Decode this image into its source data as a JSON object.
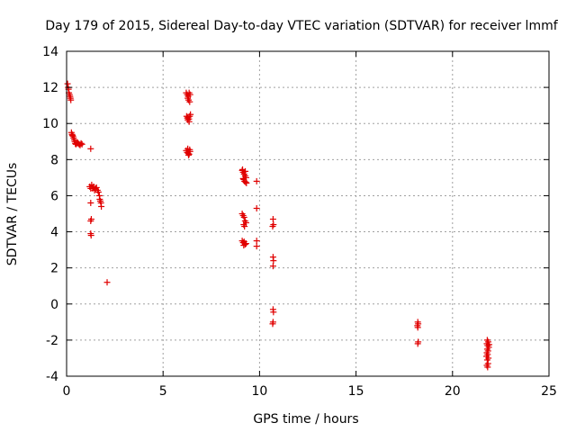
{
  "colors": {
    "background": "#ffffff",
    "axis": "#000000",
    "grid": "#a0a0a0",
    "series": "#e00000"
  },
  "chart_data": {
    "type": "scatter",
    "title": "Day 179 of 2015, Sidereal Day-to-day VTEC variation (SDTVAR) for receiver lmmf",
    "xlabel": "GPS time / hours",
    "ylabel": "SDTVAR / TECUs",
    "xlim": [
      0,
      25
    ],
    "ylim": [
      -4,
      14
    ],
    "xticks": [
      0,
      5,
      10,
      15,
      20,
      25
    ],
    "yticks": [
      -4,
      -2,
      0,
      2,
      4,
      6,
      8,
      10,
      12,
      14
    ],
    "grid": true,
    "marker": "+",
    "series": [
      {
        "name": "SDTVAR",
        "points": [
          [
            0.05,
            12.2
          ],
          [
            0.08,
            12.0
          ],
          [
            0.1,
            11.9
          ],
          [
            0.12,
            11.7
          ],
          [
            0.15,
            11.6
          ],
          [
            0.18,
            11.5
          ],
          [
            0.2,
            11.4
          ],
          [
            0.22,
            11.3
          ],
          [
            0.25,
            9.5
          ],
          [
            0.28,
            9.4
          ],
          [
            0.3,
            9.35
          ],
          [
            0.33,
            9.3
          ],
          [
            0.36,
            9.2
          ],
          [
            0.4,
            9.1
          ],
          [
            0.42,
            9.0
          ],
          [
            0.45,
            8.9
          ],
          [
            0.48,
            8.85
          ],
          [
            0.52,
            8.9
          ],
          [
            0.56,
            8.95
          ],
          [
            0.6,
            8.9
          ],
          [
            0.65,
            8.85
          ],
          [
            0.7,
            8.8
          ],
          [
            0.75,
            8.9
          ],
          [
            0.8,
            8.85
          ],
          [
            1.25,
            8.6
          ],
          [
            1.2,
            6.5
          ],
          [
            1.25,
            6.4
          ],
          [
            1.3,
            6.6
          ],
          [
            1.35,
            6.4
          ],
          [
            1.4,
            6.5
          ],
          [
            1.45,
            6.3
          ],
          [
            1.5,
            6.4
          ],
          [
            1.55,
            6.45
          ],
          [
            1.6,
            6.3
          ],
          [
            1.65,
            6.2
          ],
          [
            1.7,
            6.0
          ],
          [
            1.72,
            5.8
          ],
          [
            1.75,
            5.7
          ],
          [
            1.78,
            5.6
          ],
          [
            1.8,
            5.4
          ],
          [
            1.25,
            5.6
          ],
          [
            1.28,
            4.7
          ],
          [
            1.25,
            4.6
          ],
          [
            1.25,
            3.9
          ],
          [
            1.27,
            3.8
          ],
          [
            2.1,
            1.2
          ],
          [
            6.2,
            11.7
          ],
          [
            6.25,
            11.6
          ],
          [
            6.3,
            11.5
          ],
          [
            6.35,
            11.7
          ],
          [
            6.4,
            11.6
          ],
          [
            6.28,
            11.4
          ],
          [
            6.32,
            11.3
          ],
          [
            6.38,
            11.2
          ],
          [
            6.22,
            10.4
          ],
          [
            6.26,
            10.3
          ],
          [
            6.3,
            10.35
          ],
          [
            6.34,
            10.25
          ],
          [
            6.38,
            10.4
          ],
          [
            6.42,
            10.5
          ],
          [
            6.35,
            10.1
          ],
          [
            6.28,
            10.2
          ],
          [
            6.2,
            8.5
          ],
          [
            6.25,
            8.4
          ],
          [
            6.3,
            8.35
          ],
          [
            6.35,
            8.3
          ],
          [
            6.4,
            8.45
          ],
          [
            6.28,
            8.6
          ],
          [
            6.32,
            8.25
          ],
          [
            6.38,
            8.55
          ],
          [
            9.1,
            7.4
          ],
          [
            9.15,
            7.3
          ],
          [
            9.2,
            7.2
          ],
          [
            9.25,
            7.1
          ],
          [
            9.3,
            7.0
          ],
          [
            9.18,
            6.9
          ],
          [
            9.22,
            6.8
          ],
          [
            9.28,
            6.75
          ],
          [
            9.12,
            7.45
          ],
          [
            9.26,
            7.35
          ],
          [
            9.32,
            6.7
          ],
          [
            9.15,
            6.95
          ],
          [
            9.1,
            5.0
          ],
          [
            9.15,
            4.9
          ],
          [
            9.2,
            4.8
          ],
          [
            9.25,
            4.6
          ],
          [
            9.3,
            4.5
          ],
          [
            9.18,
            4.4
          ],
          [
            9.22,
            4.3
          ],
          [
            9.1,
            3.5
          ],
          [
            9.15,
            3.4
          ],
          [
            9.2,
            3.45
          ],
          [
            9.25,
            3.3
          ],
          [
            9.3,
            3.35
          ],
          [
            9.18,
            3.25
          ],
          [
            9.85,
            6.8
          ],
          [
            9.85,
            5.3
          ],
          [
            9.85,
            3.5
          ],
          [
            9.85,
            3.2
          ],
          [
            10.7,
            4.7
          ],
          [
            10.72,
            4.4
          ],
          [
            10.68,
            4.3
          ],
          [
            10.7,
            2.6
          ],
          [
            10.72,
            2.4
          ],
          [
            10.7,
            2.1
          ],
          [
            10.7,
            -0.3
          ],
          [
            10.72,
            -0.45
          ],
          [
            10.7,
            -1.0
          ],
          [
            10.68,
            -1.1
          ],
          [
            18.2,
            -1.0
          ],
          [
            18.22,
            -1.1
          ],
          [
            18.18,
            -1.2
          ],
          [
            18.2,
            -1.3
          ],
          [
            18.22,
            -2.1
          ],
          [
            18.2,
            -2.2
          ],
          [
            21.8,
            -2.0
          ],
          [
            21.85,
            -2.1
          ],
          [
            21.78,
            -2.2
          ],
          [
            21.82,
            -2.3
          ],
          [
            21.88,
            -2.4
          ],
          [
            21.8,
            -2.5
          ],
          [
            21.84,
            -2.6
          ],
          [
            21.78,
            -2.7
          ],
          [
            21.82,
            -2.8
          ],
          [
            21.86,
            -3.0
          ],
          [
            21.8,
            -3.1
          ],
          [
            21.84,
            -3.3
          ],
          [
            21.78,
            -3.4
          ],
          [
            21.82,
            -3.5
          ],
          [
            21.9,
            -2.25
          ],
          [
            21.76,
            -2.9
          ]
        ]
      }
    ]
  }
}
